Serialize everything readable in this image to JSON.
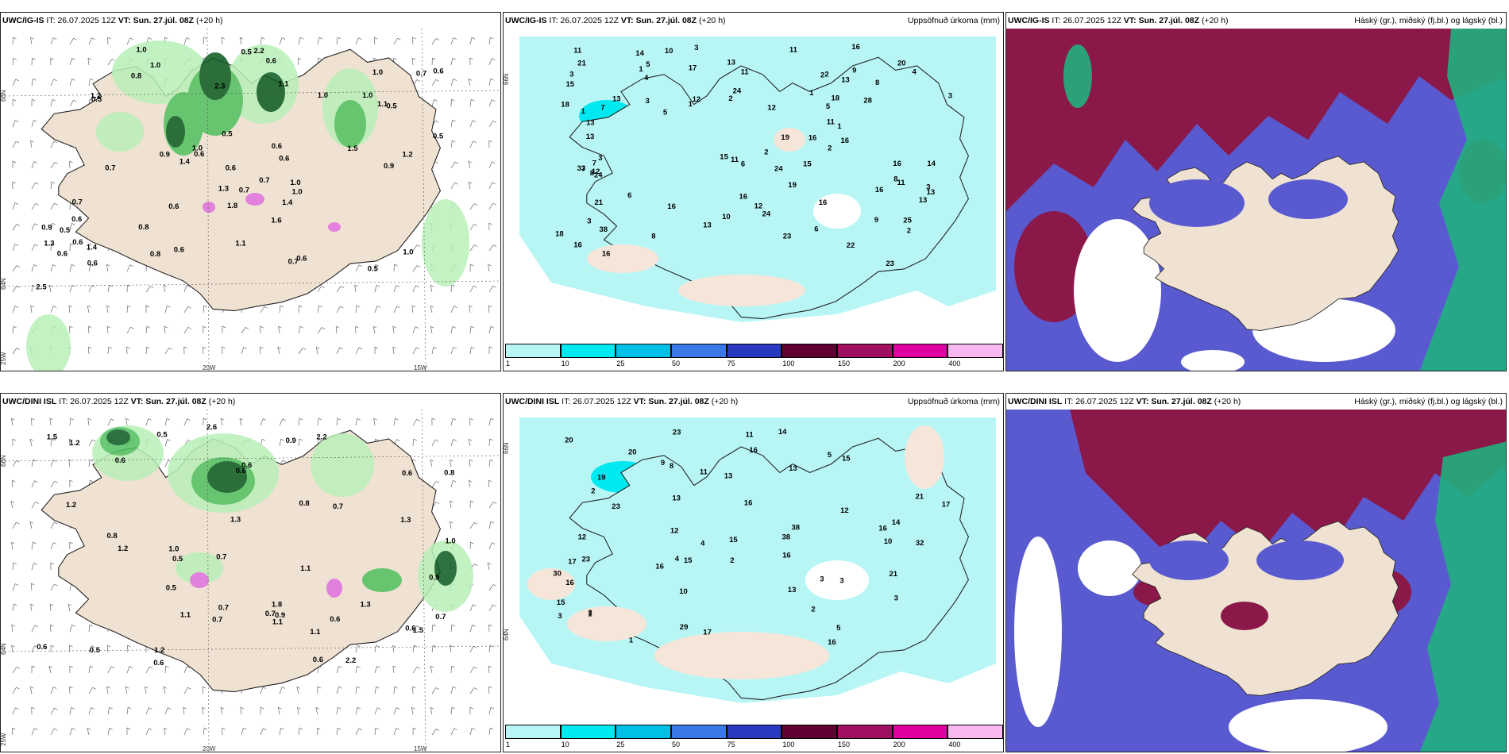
{
  "panels": [
    {
      "id": "p1",
      "model": "UWC/IG-IS",
      "it_label": "IT:",
      "it_value": "26.07.2025 12Z",
      "vt_label": "VT:",
      "vt_value": "Sun. 27.júl. 08Z",
      "lead": "(+20 h)",
      "right_title": "",
      "axis_labels": [
        "66N",
        "64N",
        "25W",
        "20W",
        "15W"
      ],
      "values": [
        "0.8",
        "1.2",
        "0.6",
        "0.5",
        "0.6",
        "0.5",
        "0.6",
        "0.8",
        "0.6",
        "0.7",
        "1.0",
        "1.0",
        "1.2",
        "0.6",
        "0.6",
        "0.6",
        "0.6",
        "1.1",
        "2.2",
        "0.7",
        "0.7",
        "1.0",
        "1.5",
        "0.5",
        "1.3",
        "1.0",
        "0.8",
        "0.6",
        "1.4",
        "1.0",
        "0.7",
        "1.8",
        "1.1",
        "1.0",
        "1.6",
        "1.1",
        "0.7",
        "2.5",
        "0.6",
        "1.0",
        "0.6",
        "2.3",
        "0.5",
        "0.7",
        "0.9",
        "0.5",
        "0.6",
        "1.3",
        "1.0",
        "0.6",
        "0.9",
        "1.4",
        "1.0",
        "0.9",
        "1.4",
        "0.5",
        "0.5"
      ]
    },
    {
      "id": "p2",
      "model": "UWC/IG-IS",
      "it_label": "IT:",
      "it_value": "26.07.2025 12Z",
      "vt_label": "VT:",
      "vt_value": "Sun. 27.júl. 08Z",
      "lead": "(+20 h)",
      "right_title": "Uppsöfnuð úrkoma (mm)",
      "axis_labels": [
        "66N"
      ],
      "values": [
        "16",
        "3",
        "5",
        "2",
        "2",
        "16",
        "16",
        "13",
        "3",
        "6",
        "24",
        "21",
        "10",
        "3",
        "3",
        "7",
        "24",
        "11",
        "12",
        "2",
        "13",
        "13",
        "16",
        "15",
        "21",
        "19",
        "13",
        "9",
        "11",
        "11",
        "6",
        "8",
        "16",
        "14",
        "19",
        "13",
        "3",
        "1",
        "16",
        "13",
        "7",
        "28",
        "22",
        "11",
        "15",
        "12",
        "9",
        "3",
        "24",
        "8",
        "23",
        "24",
        "16",
        "33",
        "38",
        "14",
        "13",
        "25",
        "17",
        "16",
        "13",
        "18",
        "18",
        "11",
        "23",
        "8",
        "16",
        "12",
        "18",
        "15",
        "16",
        "20",
        "4",
        "11",
        "2",
        "10",
        "5",
        "12",
        "8",
        "5",
        "1",
        "2",
        "1",
        "2",
        "3",
        "7",
        "4",
        "6",
        "1",
        "1"
      ],
      "legend_ticks": [
        "1",
        "10",
        "25",
        "50",
        "75",
        "100",
        "150",
        "200",
        "400"
      ],
      "legend_colors": [
        "#b8f6f6",
        "#00e8f0",
        "#00c0e8",
        "#3a78e8",
        "#2a3ac0",
        "#600030",
        "#a01060",
        "#e000a0",
        "#f8b8f0"
      ]
    },
    {
      "id": "p3",
      "model": "UWC/IG-IS",
      "it_label": "IT:",
      "it_value": "26.07.2025 12Z",
      "vt_label": "VT:",
      "vt_value": "Sun. 27.júl. 08Z",
      "lead": "(+20 h)",
      "right_title": "Háský (gr.), miðský (fj.bl.) og lágský (bl.)"
    },
    {
      "id": "p4",
      "model": "UWC/DINI ISL",
      "it_label": "IT:",
      "it_value": "26.07.2025 12Z",
      "vt_label": "VT:",
      "vt_value": "Sun. 27.júl. 08Z",
      "lead": "(+20 h)",
      "right_title": "",
      "axis_labels": [
        "66N",
        "64N",
        "25W",
        "20W",
        "15W"
      ],
      "values": [
        "1.3",
        "1.5",
        "1.2",
        "0.7",
        "2.6",
        "0.6",
        "0.7",
        "1.8",
        "0.9",
        "0.6",
        "0.7",
        "2.2",
        "0.6",
        "0.6",
        "1.1",
        "0.8",
        "1.0",
        "2.2",
        "0.7",
        "0.7",
        "0.5",
        "0.6",
        "0.6",
        "1.1",
        "0.5",
        "0.8",
        "0.6",
        "0.5",
        "1.2",
        "0.7",
        "1.3",
        "0.6",
        "0.9",
        "0.5",
        "1.1",
        "0.9",
        "1.0",
        "0.8",
        "1.1",
        "1.2",
        "1.5",
        "1.3",
        "0.6",
        "1.2"
      ]
    },
    {
      "id": "p5",
      "model": "UWC/DINI ISL",
      "it_label": "IT:",
      "it_value": "26.07.2025 12Z",
      "vt_label": "VT:",
      "vt_value": "Sun. 27.júl. 08Z",
      "lead": "(+20 h)",
      "right_title": "Uppsöfnuð úrkoma (mm)",
      "axis_labels": [
        "66N",
        "64N"
      ],
      "values": [
        "4",
        "16",
        "13",
        "10",
        "3",
        "11",
        "13",
        "3",
        "11",
        "17",
        "16",
        "16",
        "12",
        "9",
        "15",
        "5",
        "12",
        "13",
        "14",
        "3",
        "16",
        "20",
        "38",
        "29",
        "32",
        "16",
        "23",
        "23",
        "15",
        "23",
        "30",
        "21",
        "19",
        "20",
        "38",
        "21",
        "16",
        "14",
        "17",
        "15",
        "15",
        "16",
        "12",
        "17",
        "13",
        "10",
        "8",
        "5",
        "4",
        "3",
        "2",
        "3",
        "2",
        "1",
        "1",
        "2"
      ],
      "legend_ticks": [
        "1",
        "10",
        "25",
        "50",
        "75",
        "100",
        "150",
        "200",
        "400"
      ],
      "legend_colors": [
        "#b8f6f6",
        "#00e8f0",
        "#00c0e8",
        "#3a78e8",
        "#2a3ac0",
        "#600030",
        "#a01060",
        "#e000a0",
        "#f8b8f0"
      ]
    },
    {
      "id": "p6",
      "model": "UWC/DINI ISL",
      "it_label": "IT:",
      "it_value": "26.07.2025 12Z",
      "vt_label": "VT:",
      "vt_value": "Sun. 27.júl. 08Z",
      "lead": "(+20 h)",
      "right_title": "Háský (gr.), miðský (fj.bl.) og lágský (bl.)"
    }
  ],
  "colors": {
    "land": "#efe2d2",
    "precip_light": "#b8f6f6",
    "precip_mid": "#00e8f0",
    "green_light": "#b8f0b8",
    "green_mid": "#50c060",
    "green_dark": "#0a5a20",
    "cloud_high": "#8a1848",
    "cloud_mid": "#5a5ad0",
    "cloud_low": "#20b080"
  }
}
